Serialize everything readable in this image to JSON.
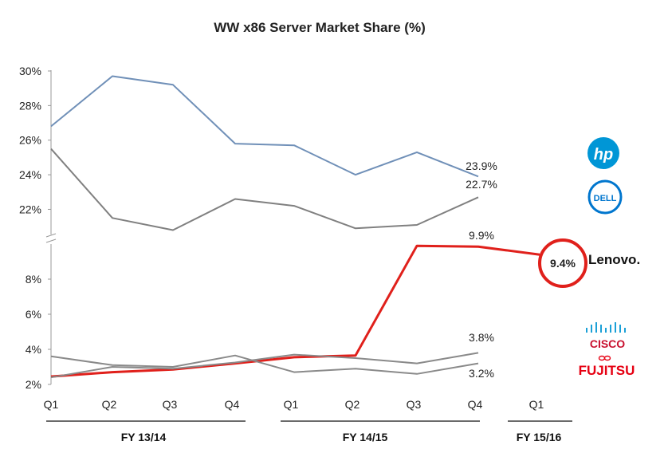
{
  "chart_data": {
    "type": "line",
    "title": "WW x86 Server Market Share (%)",
    "categories": [
      "Q1",
      "Q2",
      "Q3",
      "Q4",
      "Q1",
      "Q2",
      "Q3",
      "Q4",
      "Q1"
    ],
    "fiscal_years": [
      "FY 13/14",
      "FY 14/15",
      "FY 15/16"
    ],
    "y_axis_upper": {
      "ticks": [
        "22%",
        "24%",
        "26%",
        "28%",
        "30%"
      ],
      "range": [
        20.5,
        30
      ]
    },
    "y_axis_lower": {
      "ticks": [
        "2%",
        "4%",
        "6%",
        "8%"
      ],
      "range": [
        2,
        10
      ]
    },
    "axis_break": true,
    "grid": false,
    "series": [
      {
        "company": "hp",
        "color": "#7090b8",
        "panel": "upper",
        "values": [
          26.8,
          29.7,
          29.2,
          25.8,
          25.7,
          24.0,
          25.3,
          23.9,
          null
        ],
        "end_label": "23.9%"
      },
      {
        "company": "dell",
        "color": "#808080",
        "panel": "upper",
        "values": [
          25.5,
          21.5,
          20.8,
          22.6,
          22.2,
          20.9,
          21.1,
          22.7,
          null
        ],
        "end_label": "22.7%"
      },
      {
        "company": "lenovo",
        "color": "#e0201b",
        "panel": "lower",
        "values": [
          2.45,
          2.7,
          2.85,
          3.2,
          3.55,
          3.65,
          9.9,
          9.85,
          9.4
        ],
        "end_label": "9.9%",
        "highlight_label": "9.4%"
      },
      {
        "company": "cisco",
        "color": "#8a8a8a",
        "panel": "lower",
        "values": [
          2.4,
          3.0,
          2.9,
          3.25,
          3.7,
          3.5,
          3.2,
          3.8,
          null
        ],
        "end_label": "3.8%"
      },
      {
        "company": "fujitsu",
        "color": "#8a8a8a",
        "panel": "lower",
        "values": [
          3.6,
          3.1,
          3.0,
          3.65,
          2.7,
          2.9,
          2.6,
          3.2,
          null
        ],
        "end_label": "3.2%"
      }
    ]
  },
  "logos": {
    "hp": "hp",
    "dell": "DELL",
    "lenovo": "Lenovo.",
    "cisco": "CISCO",
    "fujitsu": "FUJITSU"
  }
}
